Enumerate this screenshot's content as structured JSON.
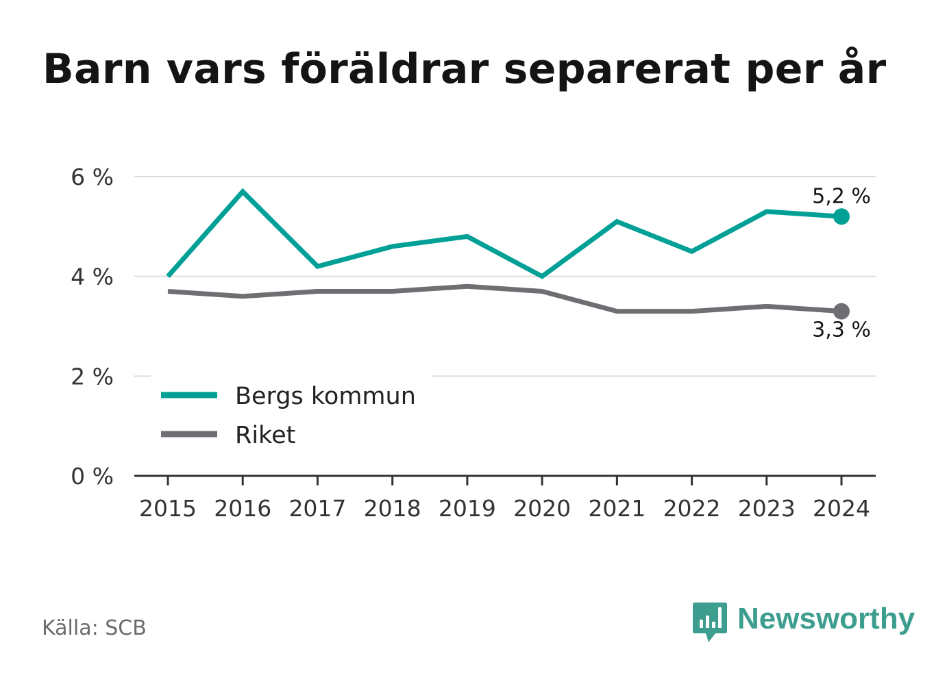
{
  "title": "Barn vars föräldrar separerat per år",
  "source": "Källa: SCB",
  "brand": {
    "name": "Newsworthy",
    "icon": "bar-chart-speech-bubble-icon",
    "color": "#3d9e8f"
  },
  "chart_data": {
    "type": "line",
    "title": "Barn vars föräldrar separerat per år",
    "xlabel": "",
    "ylabel": "",
    "x": [
      "2015",
      "2016",
      "2017",
      "2018",
      "2019",
      "2020",
      "2021",
      "2022",
      "2023",
      "2024"
    ],
    "y_ticks": [
      {
        "value": 0,
        "label": "0 %"
      },
      {
        "value": 2,
        "label": "2 %"
      },
      {
        "value": 4,
        "label": "4 %"
      },
      {
        "value": 6,
        "label": "6 %"
      }
    ],
    "ylim": [
      0,
      6
    ],
    "grid": true,
    "legend_position": "bottom-left",
    "series": [
      {
        "name": "Bergs kommun",
        "color": "#00a096",
        "values": [
          4.0,
          5.7,
          4.2,
          4.6,
          4.8,
          4.0,
          5.1,
          4.5,
          5.3,
          5.2
        ],
        "end_label": "5,2 %"
      },
      {
        "name": "Riket",
        "color": "#6e6e73",
        "values": [
          3.7,
          3.6,
          3.7,
          3.7,
          3.8,
          3.7,
          3.3,
          3.3,
          3.4,
          3.3
        ],
        "end_label": "3,3 %"
      }
    ]
  }
}
